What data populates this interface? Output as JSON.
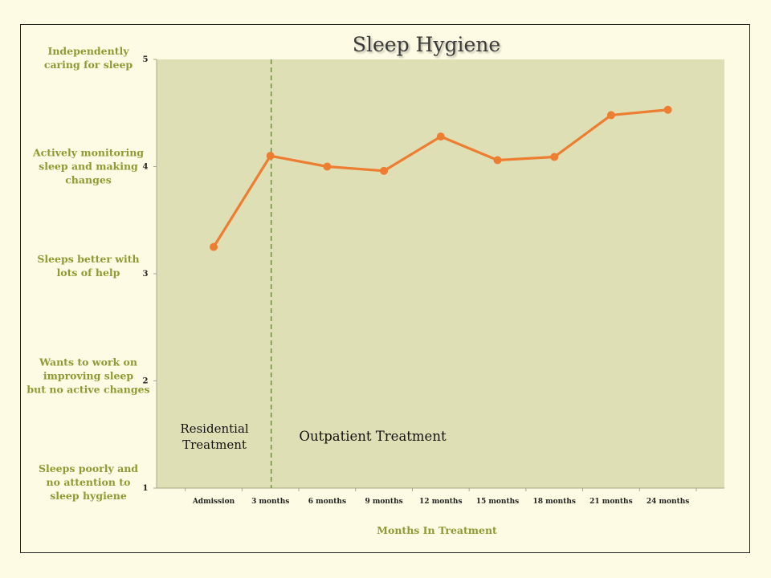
{
  "chart_data": {
    "type": "line",
    "title": "Sleep Hygiene",
    "xlabel": "Months In Treatment",
    "ylabel": "",
    "ylim": [
      1,
      5
    ],
    "y_ticks": [
      "1",
      "2",
      "3",
      "4",
      "5"
    ],
    "y_level_labels": [
      {
        "value": 5,
        "lines": [
          "Independently",
          "caring for sleep"
        ]
      },
      {
        "value": 4,
        "lines": [
          "Actively monitoring",
          "sleep and making",
          "changes"
        ]
      },
      {
        "value": 3,
        "lines": [
          "Sleeps better with",
          "lots of help"
        ]
      },
      {
        "value": 2,
        "lines": [
          "Wants to work on",
          "improving sleep",
          "but no active changes"
        ]
      },
      {
        "value": 1,
        "lines": [
          "Sleeps poorly and",
          "no attention to",
          "sleep hygiene"
        ]
      }
    ],
    "categories": [
      "Admission",
      "3 months",
      "6 months",
      "9 months",
      "12 months",
      "15 months",
      "18 months",
      "21 months",
      "24 months"
    ],
    "series": [
      {
        "values": [
          3.25,
          4.1,
          4.0,
          3.96,
          4.28,
          4.06,
          4.09,
          4.48,
          4.53
        ]
      }
    ],
    "annotations": {
      "divider_after_category": "3 months",
      "residential_label": [
        "Residential",
        "Treatment"
      ],
      "outpatient_label": "Outpatient Treatment"
    },
    "colors": {
      "line": "#ed7d31",
      "plot_background": "#dfdfb5",
      "page_background": "#fdfbe3",
      "divider": "#6e9a3a",
      "level_label": "#8e9a33"
    },
    "grid": false,
    "legend": "none"
  }
}
